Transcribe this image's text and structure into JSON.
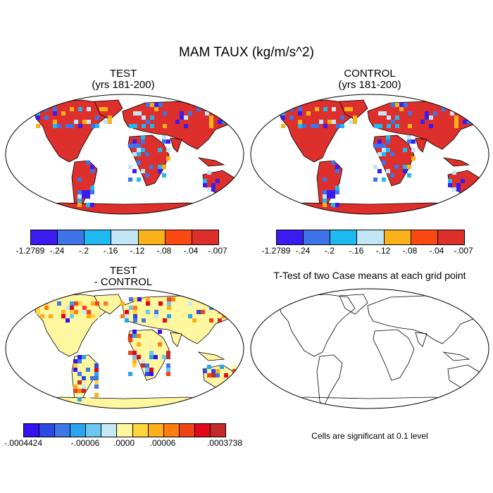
{
  "title": "MAM TAUX (kg/m/s^2)",
  "panels": {
    "test": {
      "title_line1": "TEST",
      "title_line2": "(yrs 181-200)"
    },
    "control": {
      "title_line1": "CONTROL",
      "title_line2": "(yrs 181-200)"
    },
    "diff": {
      "title_line1": "TEST",
      "title_line2": "- CONTROL"
    },
    "ttest": {
      "title": "T-Test of two Case means at each grid point",
      "note": "Cells are significant at 0.1 level"
    }
  },
  "colorbars": {
    "main": {
      "colors": [
        "#3b1bef",
        "#3f73e8",
        "#1fb9f1",
        "#c2e6f4",
        "#f9b21a",
        "#fb4a11",
        "#dd2f2b"
      ],
      "labels": [
        "-1.2789",
        "-.24",
        "-.2",
        "-.16",
        "-.12",
        "-.08",
        "-.04",
        "-.007"
      ]
    },
    "diff": {
      "colors": [
        "#3412f0",
        "#2b4ae5",
        "#3d78e6",
        "#2ba4ee",
        "#6cc7f2",
        "#c6e8f4",
        "#fff6a0",
        "#ffd53a",
        "#ffae18",
        "#ff7d10",
        "#f14416",
        "#e3061a",
        "#c42a2a"
      ],
      "labels": [
        "-.0004424",
        "-.00006",
        ".0000",
        ".00006",
        ".0003738"
      ]
    }
  },
  "map_colors": {
    "ocean": "#ffffff",
    "main_land": "#dd2f2b",
    "diff_land": "#fff6a0"
  }
}
